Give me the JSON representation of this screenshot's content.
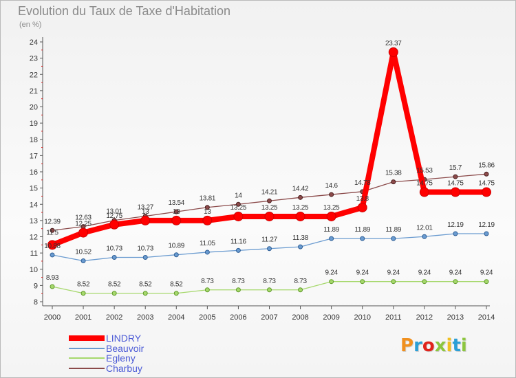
{
  "title": "Evolution du Taux de Taxe d'Habitation",
  "subtitle": "(en %)",
  "logo": {
    "text": "Proxiti",
    "colors": [
      "#f0901e",
      "#2a9fd6",
      "#e0231c",
      "#8cc63e",
      "#f0c020",
      "#2a9fd6",
      "#8cc63e"
    ]
  },
  "chart_data": {
    "type": "line",
    "x": [
      2000,
      2001,
      2002,
      2003,
      2004,
      2005,
      2006,
      2007,
      2008,
      2009,
      2010,
      2011,
      2012,
      2013,
      2014
    ],
    "ylim": [
      8,
      24
    ],
    "yticks": [
      8,
      9,
      10,
      11,
      12,
      13,
      14,
      15,
      16,
      17,
      18,
      19,
      20,
      21,
      22,
      23,
      24
    ],
    "grid": false,
    "legend": "bottom-left",
    "series": [
      {
        "name": "LINDRY",
        "color": "#ff0000",
        "values": [
          11.5,
          12.25,
          12.75,
          13,
          13,
          13,
          13.25,
          13.25,
          13.25,
          13.25,
          13.8,
          23.37,
          14.75,
          14.75,
          14.75
        ],
        "labels": [
          "11.5",
          "12.25",
          "12.75",
          "13",
          "13",
          "13",
          "13.25",
          "13.25",
          "13.25",
          "13.25",
          "13.8",
          "23.37",
          "14.75",
          "14.75",
          "14.75"
        ]
      },
      {
        "name": "Beauvoir",
        "color": "#6a9bd0",
        "values": [
          10.88,
          10.52,
          10.73,
          10.73,
          10.89,
          11.05,
          11.16,
          11.27,
          11.38,
          11.89,
          11.89,
          11.89,
          12.01,
          12.19,
          12.19
        ],
        "labels": [
          "10.88",
          "10.52",
          "10.73",
          "10.73",
          "10.89",
          "11.05",
          "11.16",
          "11.27",
          "11.38",
          "11.89",
          "11.89",
          "11.89",
          "12.01",
          "12.19",
          "12.19"
        ]
      },
      {
        "name": "Egleny",
        "color": "#a6d86c",
        "values": [
          8.93,
          8.52,
          8.52,
          8.52,
          8.52,
          8.73,
          8.73,
          8.73,
          8.73,
          9.24,
          9.24,
          9.24,
          9.24,
          9.24,
          9.24
        ],
        "labels": [
          "8.93",
          "8.52",
          "8.52",
          "8.52",
          "8.52",
          "8.73",
          "8.73",
          "8.73",
          "8.73",
          "9.24",
          "9.24",
          "9.24",
          "9.24",
          "9.24",
          "9.24"
        ]
      },
      {
        "name": "Charbuy",
        "color": "#8b4a4a",
        "values": [
          12.39,
          12.63,
          13.01,
          13.27,
          13.54,
          13.81,
          14,
          14.21,
          14.42,
          14.6,
          14.78,
          15.38,
          15.53,
          15.7,
          15.86
        ],
        "labels": [
          "12.39",
          "12.63",
          "13.01",
          "13.27",
          "13.54",
          "13.81",
          "14",
          "14.21",
          "14.42",
          "14.6",
          "14.78",
          "15.38",
          "15.53",
          "15.7",
          "15.86"
        ]
      }
    ]
  }
}
